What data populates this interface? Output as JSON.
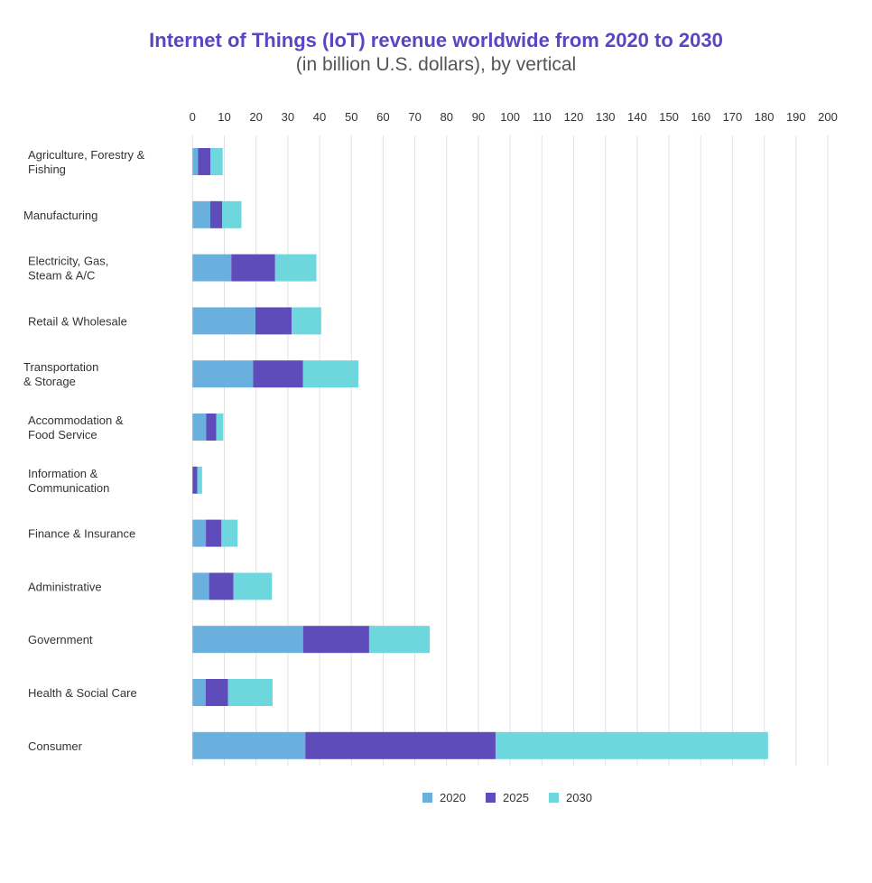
{
  "chart_data": {
    "type": "bar",
    "orientation": "horizontal",
    "stacked": true,
    "title": "Internet of Things (IoT) revenue worldwide from 2020 to 2030",
    "subtitle": "(in billion U.S. dollars), by vertical",
    "categories": [
      [
        "Agriculture, Forestry &",
        "Fishing"
      ],
      [
        "Manufacturing"
      ],
      [
        "Electricity, Gas,",
        "Steam & A/C"
      ],
      [
        "Retail & Wholesale"
      ],
      [
        "Transportation",
        "& Storage"
      ],
      [
        "Accommodation &",
        "Food Service"
      ],
      [
        "Information &",
        "Communication"
      ],
      [
        "Finance & Insurance"
      ],
      [
        "Administrative"
      ],
      [
        "Government"
      ],
      [
        "Health & Social Care"
      ],
      [
        "Consumer"
      ]
    ],
    "series": [
      {
        "name": "2020",
        "color": "#6ab0de",
        "values": [
          1.7,
          5.6,
          12.2,
          19.8,
          19.1,
          4.3,
          0,
          4.2,
          5.2,
          34.8,
          4.1,
          35.5
        ]
      },
      {
        "name": "2025",
        "color": "#5e4cbb",
        "values": [
          3.9,
          3.7,
          13.8,
          11.4,
          15.7,
          3.2,
          1.5,
          4.9,
          7.7,
          20.8,
          7.1,
          59.9
        ]
      },
      {
        "name": "2030",
        "color": "#6dd7dd",
        "values": [
          3.9,
          6.1,
          13.0,
          9.3,
          17.4,
          2.2,
          1.5,
          5.1,
          12.1,
          19.1,
          14.0,
          85.8
        ]
      }
    ],
    "xlim": [
      0,
      200
    ],
    "xticks": [
      0,
      10,
      20,
      30,
      40,
      50,
      60,
      70,
      80,
      90,
      100,
      110,
      120,
      130,
      140,
      150,
      160,
      170,
      180,
      190,
      200
    ],
    "x_axis_position": "top",
    "grid": true,
    "legend": "bottom"
  }
}
